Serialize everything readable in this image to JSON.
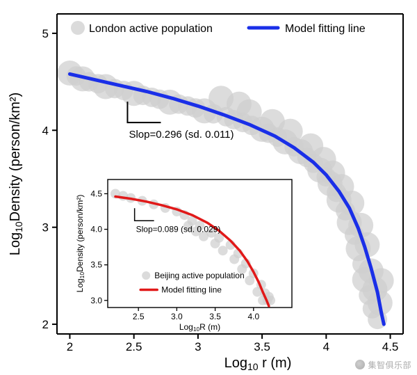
{
  "main": {
    "type": "scatter+line",
    "background_color": "#ffffff",
    "xlabel": "Log₁₀ r (m)",
    "ylabel": "Log₁₀Density (person/km²)",
    "label_fontsize": 20,
    "tick_fontsize": 17,
    "xlim": [
      1.9,
      4.6
    ],
    "ylim": [
      1.9,
      5.2
    ],
    "xticks": [
      2,
      2.5,
      3,
      3.5,
      4,
      4.5
    ],
    "yticks": [
      2,
      3,
      4,
      5
    ],
    "axis_color": "#000000",
    "axis_width": 2,
    "tick_len": 7,
    "scatter": {
      "color": "#cfcfcf",
      "opacity": 0.72,
      "radii": [
        10,
        14,
        18
      ],
      "points": [
        [
          2.0,
          4.59,
          2
        ],
        [
          2.05,
          4.56,
          1
        ],
        [
          2.1,
          4.53,
          2
        ],
        [
          2.15,
          4.5,
          1
        ],
        [
          2.22,
          4.48,
          1
        ],
        [
          2.28,
          4.45,
          2
        ],
        [
          2.35,
          4.43,
          1
        ],
        [
          2.42,
          4.41,
          1
        ],
        [
          2.5,
          4.38,
          2
        ],
        [
          2.57,
          4.36,
          1
        ],
        [
          2.64,
          4.34,
          1
        ],
        [
          2.7,
          4.32,
          1
        ],
        [
          2.78,
          4.29,
          2
        ],
        [
          2.85,
          4.27,
          1
        ],
        [
          2.92,
          4.25,
          1
        ],
        [
          2.98,
          4.23,
          1
        ],
        [
          3.05,
          4.2,
          2
        ],
        [
          3.12,
          4.17,
          1
        ],
        [
          3.18,
          4.33,
          2
        ],
        [
          3.22,
          4.14,
          1
        ],
        [
          3.28,
          4.11,
          1
        ],
        [
          3.32,
          4.27,
          2
        ],
        [
          3.35,
          4.08,
          1
        ],
        [
          3.4,
          4.19,
          2
        ],
        [
          3.42,
          4.05,
          1
        ],
        [
          3.5,
          4.01,
          2
        ],
        [
          3.55,
          3.97,
          1
        ],
        [
          3.58,
          4.09,
          2
        ],
        [
          3.62,
          3.93,
          1
        ],
        [
          3.68,
          3.88,
          2
        ],
        [
          3.72,
          3.99,
          2
        ],
        [
          3.75,
          3.83,
          1
        ],
        [
          3.8,
          3.78,
          2
        ],
        [
          3.85,
          3.72,
          1
        ],
        [
          3.88,
          3.84,
          2
        ],
        [
          3.9,
          3.66,
          1
        ],
        [
          3.95,
          3.59,
          2
        ],
        [
          3.98,
          3.7,
          2
        ],
        [
          4.0,
          3.52,
          1
        ],
        [
          4.03,
          3.45,
          2
        ],
        [
          4.05,
          3.56,
          2
        ],
        [
          4.08,
          3.36,
          1
        ],
        [
          4.1,
          3.28,
          2
        ],
        [
          4.12,
          3.42,
          2
        ],
        [
          4.15,
          3.17,
          1
        ],
        [
          4.18,
          3.05,
          2
        ],
        [
          4.2,
          3.25,
          2
        ],
        [
          4.22,
          2.92,
          1
        ],
        [
          4.25,
          2.78,
          2
        ],
        [
          4.27,
          3.02,
          2
        ],
        [
          4.28,
          2.62,
          1
        ],
        [
          4.3,
          2.46,
          2
        ],
        [
          4.32,
          2.82,
          2
        ],
        [
          4.33,
          2.3,
          1
        ],
        [
          4.35,
          2.55,
          2
        ],
        [
          4.36,
          2.16,
          1
        ],
        [
          4.38,
          2.36,
          2
        ],
        [
          4.4,
          2.05,
          1
        ],
        [
          4.42,
          2.22,
          2
        ],
        [
          4.43,
          2.45,
          2
        ]
      ]
    },
    "fit": {
      "color": "#1a2fe8",
      "width": 5,
      "points": [
        [
          2.0,
          4.58
        ],
        [
          2.2,
          4.52
        ],
        [
          2.4,
          4.46
        ],
        [
          2.6,
          4.4
        ],
        [
          2.8,
          4.33
        ],
        [
          3.0,
          4.25
        ],
        [
          3.2,
          4.16
        ],
        [
          3.4,
          4.06
        ],
        [
          3.6,
          3.94
        ],
        [
          3.75,
          3.82
        ],
        [
          3.9,
          3.67
        ],
        [
          4.0,
          3.54
        ],
        [
          4.1,
          3.37
        ],
        [
          4.18,
          3.2
        ],
        [
          4.25,
          2.99
        ],
        [
          4.3,
          2.8
        ],
        [
          4.35,
          2.58
        ],
        [
          4.4,
          2.33
        ],
        [
          4.43,
          2.12
        ],
        [
          4.45,
          2.0
        ]
      ]
    },
    "legend": {
      "items": [
        {
          "kind": "marker",
          "label": "London active population",
          "color": "#cfcfcf"
        },
        {
          "kind": "line",
          "label": "Model fitting line",
          "color": "#1a2fe8",
          "width": 5
        }
      ]
    },
    "slope_annot": {
      "text": "Slop=0.296 (sd. 0.011)",
      "bracket": {
        "h": 48,
        "v": 30,
        "stroke": "#000000",
        "width": 2
      }
    }
  },
  "inset": {
    "type": "scatter+line",
    "box_stroke": "#000000",
    "box_width": 1.4,
    "background_color": "#ffffff",
    "xlabel": "Log₁₀R (m)",
    "ylabel": "Log₁₀Density (person/km²)",
    "xlim": [
      2.1,
      4.5
    ],
    "ylim": [
      2.9,
      4.7
    ],
    "xticks": [
      2.5,
      3.0,
      3.5,
      4.0
    ],
    "yticks": [
      3.0,
      3.5,
      4.0,
      4.5
    ],
    "scatter": {
      "color": "#cfcfcf",
      "opacity": 0.72,
      "radius": 7,
      "points": [
        [
          2.2,
          4.5
        ],
        [
          2.3,
          4.47
        ],
        [
          2.4,
          4.44
        ],
        [
          2.55,
          4.4
        ],
        [
          2.7,
          4.35
        ],
        [
          2.85,
          4.3
        ],
        [
          3.0,
          4.25
        ],
        [
          3.1,
          4.2
        ],
        [
          3.15,
          4.05
        ],
        [
          3.2,
          4.12
        ],
        [
          3.25,
          3.97
        ],
        [
          3.3,
          4.05
        ],
        [
          3.35,
          3.9
        ],
        [
          3.45,
          3.95
        ],
        [
          3.5,
          3.8
        ],
        [
          3.55,
          3.88
        ],
        [
          3.6,
          3.7
        ],
        [
          3.7,
          3.78
        ],
        [
          3.75,
          3.58
        ],
        [
          3.8,
          3.66
        ],
        [
          3.85,
          3.44
        ],
        [
          3.9,
          3.52
        ],
        [
          3.95,
          3.28
        ],
        [
          4.0,
          3.38
        ],
        [
          4.05,
          3.12
        ],
        [
          4.1,
          3.22
        ],
        [
          4.12,
          3.0
        ],
        [
          4.15,
          3.1
        ],
        [
          4.18,
          3.0
        ],
        [
          4.2,
          3.05
        ],
        [
          4.22,
          3.0
        ]
      ]
    },
    "fit": {
      "color": "#e11919",
      "width": 3.5,
      "points": [
        [
          2.2,
          4.46
        ],
        [
          2.4,
          4.43
        ],
        [
          2.6,
          4.39
        ],
        [
          2.8,
          4.34
        ],
        [
          3.0,
          4.28
        ],
        [
          3.2,
          4.2
        ],
        [
          3.4,
          4.09
        ],
        [
          3.55,
          3.98
        ],
        [
          3.7,
          3.84
        ],
        [
          3.82,
          3.7
        ],
        [
          3.92,
          3.55
        ],
        [
          4.0,
          3.4
        ],
        [
          4.07,
          3.25
        ],
        [
          4.12,
          3.12
        ],
        [
          4.17,
          3.0
        ],
        [
          4.2,
          2.92
        ]
      ]
    },
    "legend": {
      "items": [
        {
          "kind": "marker",
          "label": "Beijing active population",
          "color": "#cfcfcf"
        },
        {
          "kind": "line",
          "label": "Model fitting line",
          "color": "#e11919",
          "width": 3.5
        }
      ]
    },
    "slope_annot": {
      "text": "Slop=0.089 (sd. 0.029)",
      "bracket": {
        "h": 28,
        "v": 18,
        "stroke": "#000000",
        "width": 1.5
      }
    }
  },
  "watermark": "集智俱乐部"
}
